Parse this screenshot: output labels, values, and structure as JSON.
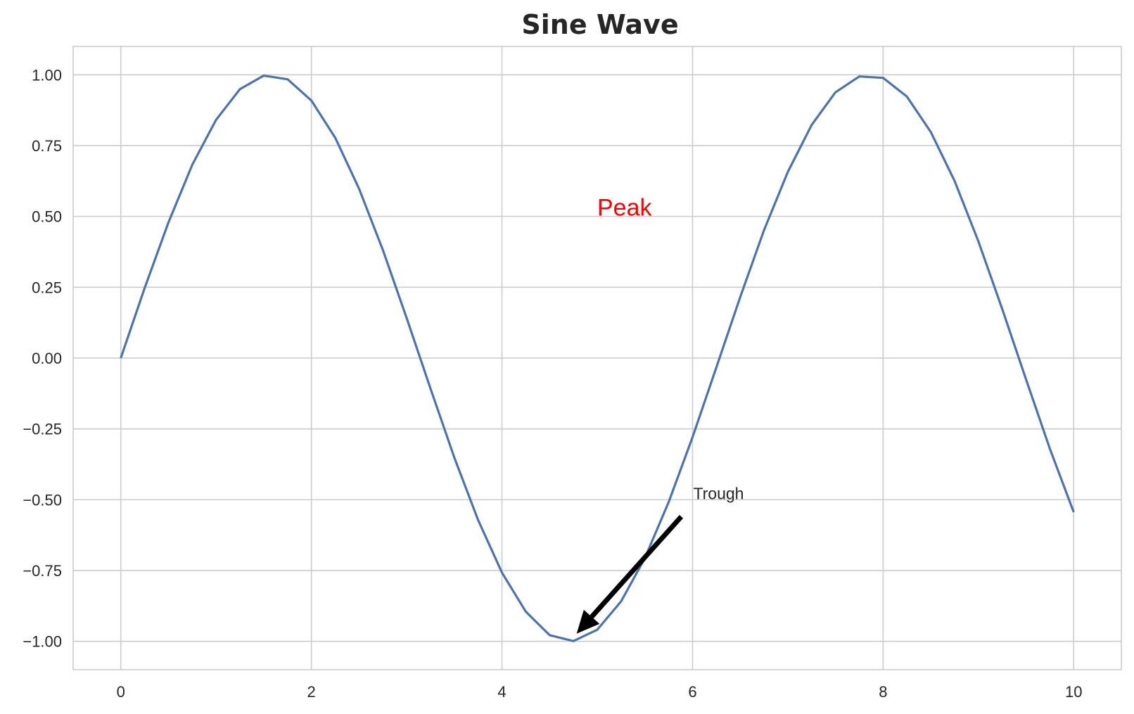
{
  "chart_data": {
    "type": "line",
    "title": "Sine Wave",
    "xlabel": "",
    "ylabel": "",
    "xlim": [
      -0.5,
      10.5
    ],
    "ylim": [
      -1.1,
      1.1
    ],
    "x_ticks": [
      0,
      2,
      4,
      6,
      8,
      10
    ],
    "x_tick_labels": [
      "0",
      "2",
      "4",
      "6",
      "8",
      "10"
    ],
    "y_ticks": [
      1.0,
      0.75,
      0.5,
      0.25,
      0.0,
      -0.25,
      -0.5,
      -0.75,
      -1.0
    ],
    "y_tick_labels": [
      "1.00",
      "0.75",
      "0.50",
      "0.25",
      "0.00",
      "−0.25",
      "−0.50",
      "−0.75",
      "−1.00"
    ],
    "grid": true,
    "series": [
      {
        "color": "#4c72b0",
        "x": [
          0.0,
          0.25,
          0.5,
          0.75,
          1.0,
          1.25,
          1.5,
          1.75,
          2.0,
          2.25,
          2.5,
          2.75,
          3.0,
          3.25,
          3.5,
          3.75,
          4.0,
          4.25,
          4.5,
          4.75,
          5.0,
          5.25,
          5.5,
          5.75,
          6.0,
          6.25,
          6.5,
          6.75,
          7.0,
          7.25,
          7.5,
          7.75,
          8.0,
          8.25,
          8.5,
          8.75,
          9.0,
          9.25,
          9.5,
          9.75,
          10.0
        ],
        "y": [
          0.0,
          0.247,
          0.479,
          0.682,
          0.841,
          0.949,
          0.997,
          0.984,
          0.909,
          0.778,
          0.598,
          0.382,
          0.141,
          -0.108,
          -0.351,
          -0.572,
          -0.757,
          -0.895,
          -0.978,
          -0.999,
          -0.959,
          -0.859,
          -0.706,
          -0.508,
          -0.279,
          -0.033,
          0.215,
          0.451,
          0.657,
          0.823,
          0.938,
          0.994,
          0.989,
          0.923,
          0.798,
          0.625,
          0.412,
          0.173,
          -0.075,
          -0.32,
          -0.544
        ]
      }
    ],
    "annotations": [
      {
        "text": "Peak",
        "x": 5.0,
        "y": 0.5,
        "color": "#ff0000"
      },
      {
        "text": "Trough",
        "x": 6.0,
        "y": -0.5,
        "arrow_to_x": 4.71,
        "arrow_to_y": -1.0,
        "color": "#000000"
      }
    ]
  }
}
